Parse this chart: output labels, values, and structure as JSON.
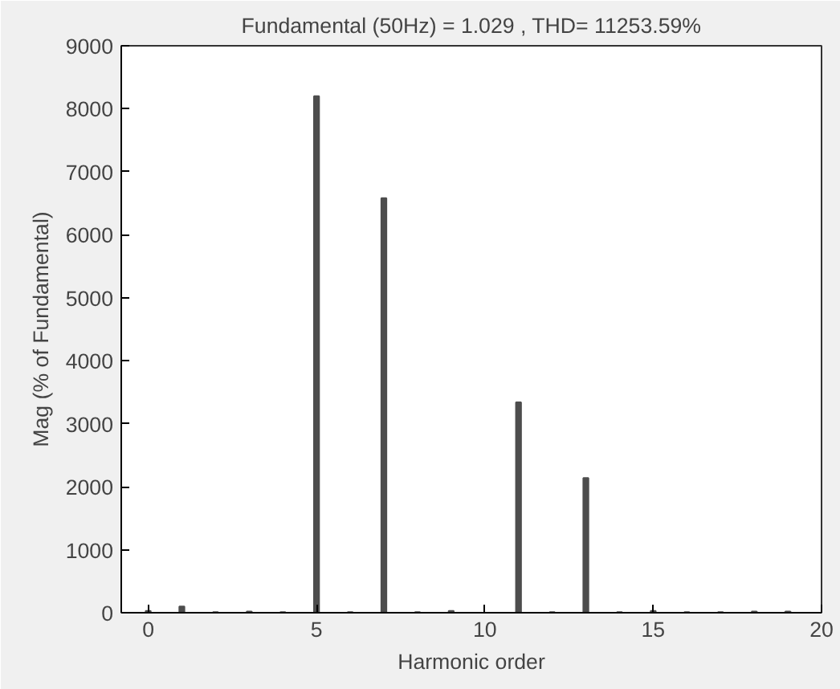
{
  "chart_data": {
    "type": "bar",
    "title": "Fundamental (50Hz) = 1.029 , THD= 11253.59%",
    "xlabel": "Harmonic order",
    "ylabel": "Mag (% of Fundamental)",
    "x": [
      0,
      1,
      2,
      3,
      4,
      5,
      6,
      7,
      8,
      9,
      10,
      11,
      12,
      13,
      14,
      15,
      16,
      17,
      18,
      19
    ],
    "values": [
      30,
      100,
      10,
      20,
      10,
      8200,
      10,
      6580,
      10,
      30,
      null,
      3340,
      10,
      2140,
      10,
      30,
      10,
      10,
      20,
      20
    ],
    "color": "#4d4d4d",
    "xlim": [
      -0.8,
      20
    ],
    "xticks": [
      0,
      5,
      10,
      15,
      20
    ],
    "ylim": [
      0,
      9000
    ],
    "yticks": [
      0,
      1000,
      2000,
      3000,
      4000,
      5000,
      6000,
      7000,
      8000,
      9000
    ],
    "grid": false
  }
}
